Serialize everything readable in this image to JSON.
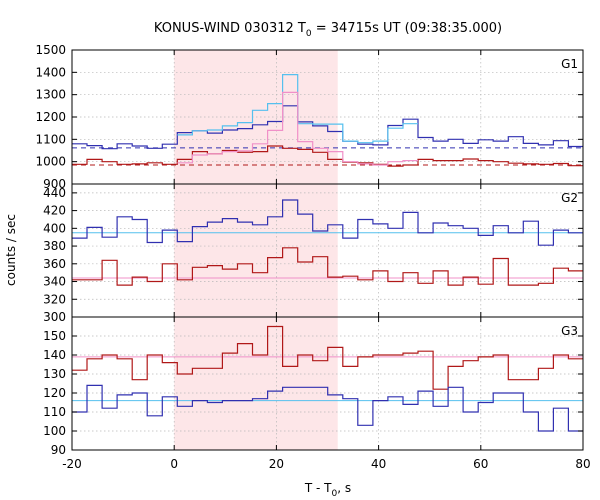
{
  "chart_data": {
    "type": "line",
    "title": "KONUS-WIND 030312 T0 = 34715s UT (09:38:35.000)",
    "title_parts": {
      "pre": "KONUS-WIND 030312 T",
      "sub": "0",
      "post": " = 34715s UT (09:38:35.000)"
    },
    "ylabel": "counts / sec",
    "xlabel_parts": {
      "pre": "T - T",
      "sub": "0",
      "post": ", s"
    },
    "xlim": [
      -20,
      80
    ],
    "xticks": [
      -20,
      0,
      20,
      40,
      60,
      80
    ],
    "shaded_interval": [
      0,
      32
    ],
    "colors": {
      "shade": "#fde6e8",
      "high_band": "#3030b0",
      "low_band": "#b01818",
      "sum_hi": "#55c0ee",
      "sum_lo": "#f090c8",
      "frame": "#000000"
    },
    "panels": [
      {
        "name": "G1",
        "ylim": [
          900,
          1500
        ],
        "yticks": [
          900,
          1000,
          1100,
          1200,
          1300,
          1400,
          1500
        ],
        "background": [
          {
            "series": "G1 high band",
            "value": 1062,
            "color": "#3030b0",
            "style": "dashed"
          },
          {
            "series": "G1 low band",
            "value": 985,
            "color": "#b01818",
            "style": "dashed"
          }
        ],
        "series": [
          {
            "color": "#3030b0",
            "binwidth": 2.944,
            "x": [
              -20,
              -17.056,
              -14.112,
              -11.168,
              -8.224,
              -5.28,
              -2.336,
              0.608,
              3.552,
              6.496,
              9.44,
              12.384,
              15.328,
              18.272,
              21.216,
              24.16,
              27.104,
              30.048,
              32.992,
              35.936,
              38.88,
              41.824,
              44.768,
              47.712,
              50.656,
              53.6,
              56.544,
              59.488,
              62.432,
              65.376,
              68.32,
              71.264,
              74.208,
              77.152
            ],
            "values": [
              1080,
              1072,
              1058,
              1080,
              1070,
              1060,
              1078,
              1130,
              1138,
              1128,
              1142,
              1148,
              1165,
              1180,
              1250,
              1178,
              1160,
              1135,
              1092,
              1078,
              1075,
              1162,
              1190,
              1108,
              1092,
              1100,
              1082,
              1098,
              1092,
              1112,
              1082,
              1075,
              1094,
              1068
            ]
          },
          {
            "color": "#55c0ee",
            "binwidth": 2.944,
            "x": [
              0.608,
              3.552,
              6.496,
              9.44,
              12.384,
              15.328,
              18.272,
              21.216,
              24.16,
              27.104,
              30.048,
              32.992,
              35.936,
              38.88,
              41.824,
              44.768
            ],
            "values": [
              1120,
              1138,
              1142,
              1160,
              1175,
              1230,
              1260,
              1390,
              1170,
              1168,
              1168,
              1092,
              1085,
              1092,
              1150,
              1170
            ]
          },
          {
            "color": "#b01818",
            "binwidth": 2.944,
            "x": [
              -20,
              -17.056,
              -14.112,
              -11.168,
              -8.224,
              -5.28,
              -2.336,
              0.608,
              3.552,
              6.496,
              9.44,
              12.384,
              15.328,
              18.272,
              21.216,
              24.16,
              27.104,
              30.048,
              32.992,
              35.936,
              38.88,
              41.824,
              44.768,
              47.712,
              50.656,
              53.6,
              56.544,
              59.488,
              62.432,
              65.376,
              68.32,
              71.264,
              74.208,
              77.152
            ],
            "values": [
              988,
              1010,
              1000,
              988,
              990,
              995,
              988,
              1010,
              1045,
              1035,
              1050,
              1042,
              1045,
              1070,
              1060,
              1055,
              1042,
              1010,
              998,
              995,
              988,
              980,
              985,
              1010,
              1005,
              1005,
              1012,
              1005,
              1000,
              993,
              990,
              988,
              992,
              982
            ]
          },
          {
            "color": "#f090c8",
            "binwidth": 2.944,
            "x": [
              0.608,
              3.552,
              6.496,
              9.44,
              12.384,
              15.328,
              18.272,
              21.216,
              24.16,
              27.104,
              30.048,
              32.992,
              35.936,
              38.88,
              41.824,
              44.768
            ],
            "values": [
              995,
              1030,
              1035,
              1045,
              1048,
              1080,
              1140,
              1310,
              1090,
              1060,
              1045,
              1000,
              990,
              985,
              1000,
              1005
            ]
          }
        ]
      },
      {
        "name": "G2",
        "ylim": [
          300,
          450
        ],
        "yticks": [
          300,
          320,
          340,
          360,
          380,
          400,
          420,
          440
        ],
        "background": [
          {
            "series": "G2 high band",
            "value": 395,
            "color": "#55c0ee",
            "style": "solid"
          },
          {
            "series": "G2 low band",
            "value": 344,
            "color": "#f090c8",
            "style": "solid"
          }
        ],
        "series": [
          {
            "color": "#3030b0",
            "binwidth": 2.944,
            "x": [
              -20,
              -17.056,
              -14.112,
              -11.168,
              -8.224,
              -5.28,
              -2.336,
              0.608,
              3.552,
              6.496,
              9.44,
              12.384,
              15.328,
              18.272,
              21.216,
              24.16,
              27.104,
              30.048,
              32.992,
              35.936,
              38.88,
              41.824,
              44.768,
              47.712,
              50.656,
              53.6,
              56.544,
              59.488,
              62.432,
              65.376,
              68.32,
              71.264,
              74.208,
              77.152
            ],
            "values": [
              389,
              401,
              390,
              413,
              410,
              384,
              398,
              385,
              402,
              407,
              411,
              407,
              404,
              413,
              432,
              416,
              397,
              404,
              389,
              410,
              405,
              400,
              418,
              395,
              406,
              403,
              400,
              392,
              403,
              395,
              408,
              381,
              398,
              395
            ]
          },
          {
            "color": "#b01818",
            "binwidth": 2.944,
            "x": [
              -20,
              -17.056,
              -14.112,
              -11.168,
              -8.224,
              -5.28,
              -2.336,
              0.608,
              3.552,
              6.496,
              9.44,
              12.384,
              15.328,
              18.272,
              21.216,
              24.16,
              27.104,
              30.048,
              32.992,
              35.936,
              38.88,
              41.824,
              44.768,
              47.712,
              50.656,
              53.6,
              56.544,
              59.488,
              62.432,
              65.376,
              68.32,
              71.264,
              74.208,
              77.152
            ],
            "values": [
              342,
              342,
              364,
              336,
              345,
              340,
              360,
              342,
              356,
              358,
              354,
              360,
              350,
              367,
              378,
              362,
              368,
              345,
              346,
              342,
              352,
              340,
              350,
              338,
              352,
              336,
              345,
              337,
              366,
              336,
              336,
              338,
              355,
              352
            ]
          }
        ]
      },
      {
        "name": "G3",
        "ylim": [
          90,
          160
        ],
        "yticks": [
          90,
          100,
          110,
          120,
          130,
          140,
          150
        ],
        "background": [
          {
            "series": "G3 low band",
            "value": 139,
            "color": "#f090c8",
            "style": "solid"
          },
          {
            "series": "G3 high band",
            "value": 116,
            "color": "#55c0ee",
            "style": "solid"
          }
        ],
        "series": [
          {
            "color": "#b01818",
            "binwidth": 2.944,
            "x": [
              -20,
              -17.056,
              -14.112,
              -11.168,
              -8.224,
              -5.28,
              -2.336,
              0.608,
              3.552,
              6.496,
              9.44,
              12.384,
              15.328,
              18.272,
              21.216,
              24.16,
              27.104,
              30.048,
              32.992,
              35.936,
              38.88,
              41.824,
              44.768,
              47.712,
              50.656,
              53.6,
              56.544,
              59.488,
              62.432,
              65.376,
              68.32,
              71.264,
              74.208,
              77.152
            ],
            "values": [
              132,
              138,
              140,
              138,
              127,
              140,
              136,
              130,
              133,
              133,
              141,
              146,
              140,
              155,
              134,
              140,
              137,
              144,
              134,
              139,
              140,
              140,
              141,
              142,
              122,
              134,
              137,
              139,
              140,
              127,
              127,
              133,
              140,
              138
            ]
          },
          {
            "color": "#3030b0",
            "binwidth": 2.944,
            "x": [
              -20,
              -17.056,
              -14.112,
              -11.168,
              -8.224,
              -5.28,
              -2.336,
              0.608,
              3.552,
              6.496,
              9.44,
              12.384,
              15.328,
              18.272,
              21.216,
              24.16,
              27.104,
              30.048,
              32.992,
              35.936,
              38.88,
              41.824,
              44.768,
              47.712,
              50.656,
              53.6,
              56.544,
              59.488,
              62.432,
              65.376,
              68.32,
              71.264,
              74.208,
              77.152
            ],
            "values": [
              110,
              124,
              112,
              119,
              120,
              108,
              118,
              113,
              116,
              115,
              116,
              116,
              117,
              121,
              123,
              123,
              123,
              119,
              117,
              103,
              116,
              118,
              114,
              121,
              113,
              123,
              110,
              115,
              120,
              120,
              110,
              100,
              112,
              100
            ]
          }
        ]
      }
    ]
  }
}
